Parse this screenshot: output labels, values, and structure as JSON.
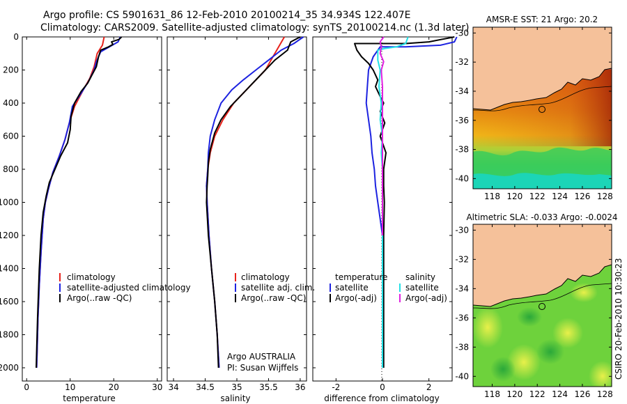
{
  "figure": {
    "title_line1": "Argo profile: CS 5901631_86 12-Feb-2010 20100214_35 34.934S 122.407E",
    "title_line2": "Climatology: CARS2009. Satellite-adjusted climatology: synTS_20100214.nc (1.3d later)",
    "side_label": "CSIRO 20-Feb-2010 10:30:23"
  },
  "colors": {
    "climatology": "#e8221b",
    "satellite": "#1c22e0",
    "argo": "#000000",
    "salinity_satellite": "#22e0e6",
    "salinity_argo": "#e020e0",
    "land": "#f5c19a",
    "coastline": "#000000"
  },
  "chart_data": [
    {
      "type": "line",
      "xlabel": "temperature",
      "ylabel": "",
      "xlim": [
        -1,
        31
      ],
      "ylim": [
        2080,
        0
      ],
      "xticks": [
        0,
        10,
        20,
        30
      ],
      "yticks": [
        0,
        200,
        400,
        600,
        800,
        1000,
        1200,
        1400,
        1600,
        1800,
        2000
      ],
      "legend": [
        "climatology",
        "satellite-adjusted climatology",
        "Argo(..raw -QC)"
      ],
      "series": [
        {
          "name": "climatology",
          "color_key": "climatology",
          "points": [
            [
              17.8,
              0
            ],
            [
              17.4,
              50
            ],
            [
              16.2,
              100
            ],
            [
              15.5,
              180
            ],
            [
              14.5,
              250
            ],
            [
              13,
              320
            ],
            [
              11,
              420
            ],
            [
              9.8,
              520
            ],
            [
              8.8,
              620
            ],
            [
              7.5,
              720
            ],
            [
              6,
              820
            ],
            [
              5,
              920
            ],
            [
              4.3,
              1000
            ],
            [
              3.8,
              1100
            ],
            [
              3.3,
              1300
            ],
            [
              2.9,
              1500
            ],
            [
              2.6,
              1700
            ],
            [
              2.4,
              1900
            ],
            [
              2.3,
              2000
            ]
          ]
        },
        {
          "name": "satellite-adjusted climatology",
          "color_key": "satellite",
          "points": [
            [
              21.5,
              0
            ],
            [
              21,
              30
            ],
            [
              19,
              60
            ],
            [
              17,
              90
            ],
            [
              16,
              150
            ],
            [
              15.5,
              200
            ],
            [
              14.2,
              270
            ],
            [
              12.5,
              340
            ],
            [
              10.5,
              420
            ],
            [
              9.8,
              520
            ],
            [
              8.8,
              620
            ],
            [
              7.5,
              720
            ],
            [
              6,
              820
            ],
            [
              5,
              920
            ],
            [
              4.3,
              1000
            ],
            [
              3.8,
              1100
            ],
            [
              3.3,
              1300
            ],
            [
              2.9,
              1500
            ],
            [
              2.6,
              1700
            ],
            [
              2.4,
              1900
            ],
            [
              2.3,
              2000
            ]
          ]
        },
        {
          "name": "Argo(..raw -QC)",
          "color_key": "argo",
          "points": [
            [
              21.8,
              0
            ],
            [
              21.2,
              15
            ],
            [
              19.5,
              30
            ],
            [
              19.8,
              45
            ],
            [
              18.8,
              60
            ],
            [
              17,
              80
            ],
            [
              16.5,
              120
            ],
            [
              16,
              180
            ],
            [
              15,
              230
            ],
            [
              14,
              280
            ],
            [
              12.5,
              330
            ],
            [
              11,
              400
            ],
            [
              10.2,
              480
            ],
            [
              10,
              560
            ],
            [
              9.4,
              640
            ],
            [
              7.8,
              720
            ],
            [
              6.5,
              800
            ],
            [
              5.2,
              880
            ],
            [
              4.5,
              960
            ],
            [
              3.8,
              1060
            ],
            [
              3.3,
              1200
            ],
            [
              2.9,
              1400
            ],
            [
              2.5,
              1700
            ],
            [
              2.3,
              1900
            ],
            [
              2.2,
              2000
            ]
          ]
        }
      ]
    },
    {
      "type": "line",
      "xlabel": "salinity",
      "ylabel": "",
      "xlim": [
        33.9,
        36.1
      ],
      "ylim": [
        2080,
        0
      ],
      "xticks": [
        34,
        34.5,
        35,
        35.5,
        36
      ],
      "yticks": [
        0,
        200,
        400,
        600,
        800,
        1000,
        1200,
        1400,
        1600,
        1800,
        2000
      ],
      "legend": [
        "climatology",
        "satellite adj. clim.",
        "Argo(..raw -QC)"
      ],
      "annotations": [
        "Argo AUSTRALIA",
        "PI: Susan Wijffels"
      ],
      "series": [
        {
          "name": "climatology",
          "color_key": "climatology",
          "points": [
            [
              35.75,
              0
            ],
            [
              35.6,
              100
            ],
            [
              35.45,
              200
            ],
            [
              35.2,
              300
            ],
            [
              34.95,
              400
            ],
            [
              34.78,
              500
            ],
            [
              34.65,
              600
            ],
            [
              34.58,
              700
            ],
            [
              34.54,
              800
            ],
            [
              34.52,
              900
            ],
            [
              34.53,
              1000
            ],
            [
              34.56,
              1200
            ],
            [
              34.6,
              1400
            ],
            [
              34.65,
              1600
            ],
            [
              34.69,
              1800
            ],
            [
              34.72,
              2000
            ]
          ]
        },
        {
          "name": "satellite adj. clim.",
          "color_key": "satellite",
          "points": [
            [
              36.05,
              0
            ],
            [
              35.9,
              40
            ],
            [
              35.7,
              80
            ],
            [
              35.5,
              140
            ],
            [
              35.3,
              200
            ],
            [
              35.1,
              260
            ],
            [
              34.92,
              320
            ],
            [
              34.75,
              400
            ],
            [
              34.65,
              500
            ],
            [
              34.58,
              600
            ],
            [
              34.55,
              700
            ],
            [
              34.54,
              800
            ],
            [
              34.52,
              900
            ],
            [
              34.53,
              1000
            ],
            [
              34.56,
              1200
            ],
            [
              34.6,
              1400
            ],
            [
              34.65,
              1600
            ],
            [
              34.69,
              1800
            ],
            [
              34.72,
              2000
            ]
          ]
        },
        {
          "name": "Argo(..raw -QC)",
          "color_key": "argo",
          "points": [
            [
              36.0,
              0
            ],
            [
              35.85,
              30
            ],
            [
              35.8,
              80
            ],
            [
              35.6,
              140
            ],
            [
              35.45,
              200
            ],
            [
              35.25,
              280
            ],
            [
              35.1,
              340
            ],
            [
              34.9,
              420
            ],
            [
              34.75,
              500
            ],
            [
              34.65,
              580
            ],
            [
              34.58,
              680
            ],
            [
              34.55,
              760
            ],
            [
              34.54,
              840
            ],
            [
              34.53,
              900
            ],
            [
              34.52,
              1000
            ],
            [
              34.55,
              1200
            ],
            [
              34.6,
              1400
            ],
            [
              34.65,
              1600
            ],
            [
              34.69,
              1800
            ],
            [
              34.71,
              2000
            ]
          ]
        }
      ]
    },
    {
      "type": "line",
      "xlabel": "difference from climatology",
      "ylabel": "",
      "xlim": [
        -3,
        3
      ],
      "ylim": [
        2080,
        0
      ],
      "xticks": [
        -2,
        0,
        2
      ],
      "yticks": [
        0,
        200,
        400,
        600,
        800,
        1000,
        1200,
        1400,
        1600,
        1800,
        2000
      ],
      "legend_groups": [
        {
          "heading": "temperature",
          "items": [
            "satellite",
            "Argo(-adj)"
          ]
        },
        {
          "heading": "salinity",
          "items": [
            "satellite",
            "Argo(-adj)"
          ]
        }
      ],
      "series": [
        {
          "name": "temperature satellite",
          "color_key": "satellite",
          "points": [
            [
              3.2,
              0
            ],
            [
              3.1,
              30
            ],
            [
              2.5,
              50
            ],
            [
              1.0,
              60
            ],
            [
              -0.1,
              60
            ],
            [
              -0.4,
              120
            ],
            [
              -0.6,
              200
            ],
            [
              -0.65,
              300
            ],
            [
              -0.7,
              400
            ],
            [
              -0.6,
              500
            ],
            [
              -0.5,
              600
            ],
            [
              -0.45,
              700
            ],
            [
              -0.35,
              800
            ],
            [
              -0.3,
              900
            ],
            [
              -0.2,
              1000
            ],
            [
              -0.1,
              1100
            ],
            [
              0,
              1200
            ],
            [
              0,
              2000
            ]
          ]
        },
        {
          "name": "temperature Argo(-adj)",
          "color_key": "argo",
          "points": [
            [
              3.1,
              0
            ],
            [
              2.0,
              30
            ],
            [
              1.0,
              40
            ],
            [
              -1.2,
              40
            ],
            [
              -1.1,
              80
            ],
            [
              -0.9,
              120
            ],
            [
              -0.6,
              160
            ],
            [
              -0.4,
              200
            ],
            [
              -0.2,
              260
            ],
            [
              -0.3,
              300
            ],
            [
              -0.1,
              360
            ],
            [
              0.05,
              400
            ],
            [
              -0.1,
              450
            ],
            [
              0.1,
              520
            ],
            [
              -0.1,
              600
            ],
            [
              0.15,
              700
            ],
            [
              0.05,
              800
            ],
            [
              0.05,
              900
            ],
            [
              0.08,
              1000
            ],
            [
              0.05,
              1200
            ],
            [
              0.05,
              1600
            ],
            [
              0.05,
              2000
            ]
          ]
        },
        {
          "name": "salinity satellite",
          "color_key": "salinity_satellite",
          "points": [
            [
              1.1,
              0
            ],
            [
              1.0,
              40
            ],
            [
              0.6,
              60
            ],
            [
              0.1,
              70
            ],
            [
              -0.2,
              80
            ],
            [
              -0.2,
              140
            ],
            [
              -0.1,
              200
            ],
            [
              -0.15,
              300
            ],
            [
              -0.05,
              400
            ],
            [
              -0.1,
              500
            ],
            [
              0,
              600
            ],
            [
              -0.05,
              700
            ],
            [
              0,
              800
            ],
            [
              0,
              1000
            ],
            [
              0,
              1200
            ],
            [
              0,
              2000
            ]
          ]
        },
        {
          "name": "salinity Argo(-adj)",
          "color_key": "salinity_argo",
          "points": [
            [
              0.05,
              0
            ],
            [
              -0.1,
              30
            ],
            [
              -0.05,
              60
            ],
            [
              -0.1,
              100
            ],
            [
              0.05,
              150
            ],
            [
              -0.05,
              200
            ],
            [
              0,
              300
            ],
            [
              0,
              400
            ],
            [
              0,
              600
            ],
            [
              0,
              800
            ],
            [
              0,
              1000
            ],
            [
              0,
              1200
            ]
          ]
        }
      ]
    }
  ],
  "maps": [
    {
      "title": "AMSR-E SST: 21 Argo: 20.2",
      "x_ticks": [
        "118",
        "120",
        "122",
        "124",
        "126",
        "128"
      ],
      "y_ticks": [
        "-30",
        "-32",
        "-34",
        "-36",
        "-38",
        "-40"
      ],
      "field": "sst",
      "marker_lon": 122.4,
      "marker_lat": -34.93
    },
    {
      "title": "Altimetric SLA: -0.033 Argo: -0.0024",
      "x_ticks": [
        "118",
        "120",
        "122",
        "124",
        "126",
        "128"
      ],
      "y_ticks": [
        "-30",
        "-32",
        "-34",
        "-36",
        "-38",
        "-40"
      ],
      "field": "sla",
      "marker_lon": 122.4,
      "marker_lat": -34.93
    }
  ]
}
